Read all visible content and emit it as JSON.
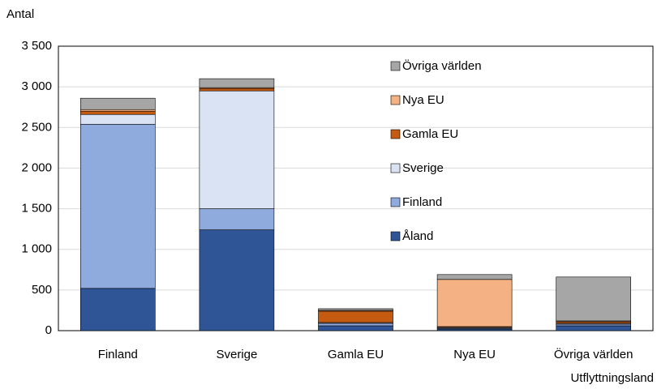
{
  "chart_data": {
    "type": "stacked_bar",
    "y_label": "Antal",
    "x_label": "Utflyttningsland",
    "categories": [
      "Finland",
      "Sverige",
      "Gamla EU",
      "Nya EU",
      "Övriga världen"
    ],
    "series": [
      {
        "name": "Åland",
        "color": "#2f5597",
        "values": [
          520,
          1240,
          60,
          20,
          60
        ]
      },
      {
        "name": "Finland",
        "color": "#8faadc",
        "values": [
          2020,
          260,
          30,
          10,
          20
        ]
      },
      {
        "name": "Sverige",
        "color": "#dae3f3",
        "values": [
          120,
          1450,
          10,
          10,
          10
        ]
      },
      {
        "name": "Gamla EU",
        "color": "#c55a11",
        "values": [
          40,
          30,
          140,
          10,
          20
        ]
      },
      {
        "name": "Nya EU",
        "color": "#f4b183",
        "values": [
          20,
          10,
          10,
          580,
          10
        ]
      },
      {
        "name": "Övriga världen",
        "color": "#a6a6a6",
        "values": [
          140,
          110,
          20,
          60,
          540
        ]
      }
    ],
    "ylim": [
      0,
      3500
    ],
    "yticks": [
      0,
      500,
      {
        "value": 1000,
        "label": "1 000"
      },
      {
        "value": 1500,
        "label": "1 500"
      },
      {
        "value": 2000,
        "label": "2 000"
      },
      {
        "value": 2500,
        "label": "2 500"
      },
      {
        "value": 3000,
        "label": "3 000"
      },
      {
        "value": 3500,
        "label": "3 500"
      }
    ],
    "grid": true
  }
}
